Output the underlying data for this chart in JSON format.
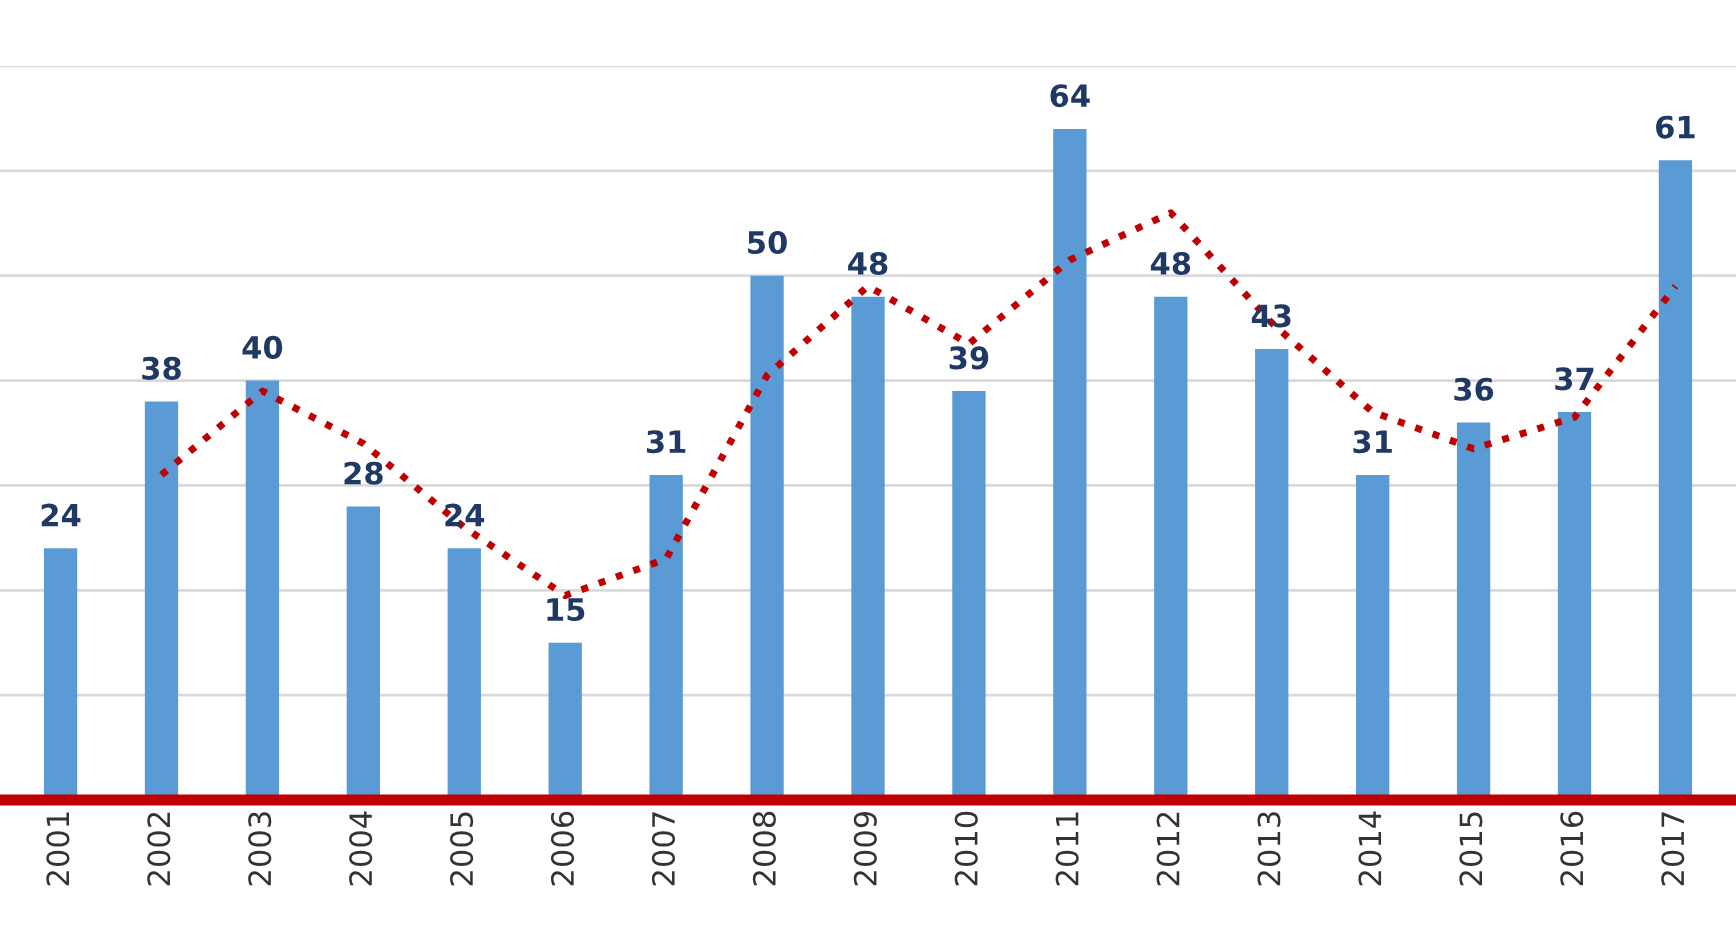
{
  "chart_data": {
    "type": "bar",
    "categories": [
      "2001",
      "2002",
      "2003",
      "2004",
      "2005",
      "2006",
      "2007",
      "2008",
      "2009",
      "2010",
      "2011",
      "2012",
      "2013",
      "2014",
      "2015",
      "2016",
      "2017"
    ],
    "series": [
      {
        "color": "#5b9bd5",
        "values": [
          24,
          38,
          40,
          28,
          24,
          15,
          31,
          50,
          48,
          39,
          64,
          48,
          43,
          31,
          36,
          37,
          61
        ],
        "value_labels": [
          "24",
          "38",
          "40",
          "28",
          "24",
          "15",
          "31",
          "50",
          "48",
          "39",
          "64",
          "48",
          "43",
          "31",
          "36",
          "37",
          "61"
        ]
      },
      {
        "type": "line",
        "color": "#c00000",
        "line_style": "dotted",
        "values": [
          null,
          31,
          39,
          34,
          26,
          19.5,
          23,
          40.5,
          49,
          43.5,
          51.5,
          56,
          45.5,
          37,
          33.5,
          36.5,
          49
        ]
      }
    ],
    "ylim": [
      0,
      70
    ],
    "yticks": [
      {
        "value": 10,
        "label": null
      },
      {
        "value": 20,
        "label": null
      },
      {
        "value": 30,
        "label": null
      },
      {
        "value": 40,
        "label": null
      },
      {
        "value": 50,
        "label": null
      },
      {
        "value": 60,
        "label": null
      },
      {
        "value": 70,
        "label": null
      }
    ],
    "grid": "y",
    "legend": false
  }
}
